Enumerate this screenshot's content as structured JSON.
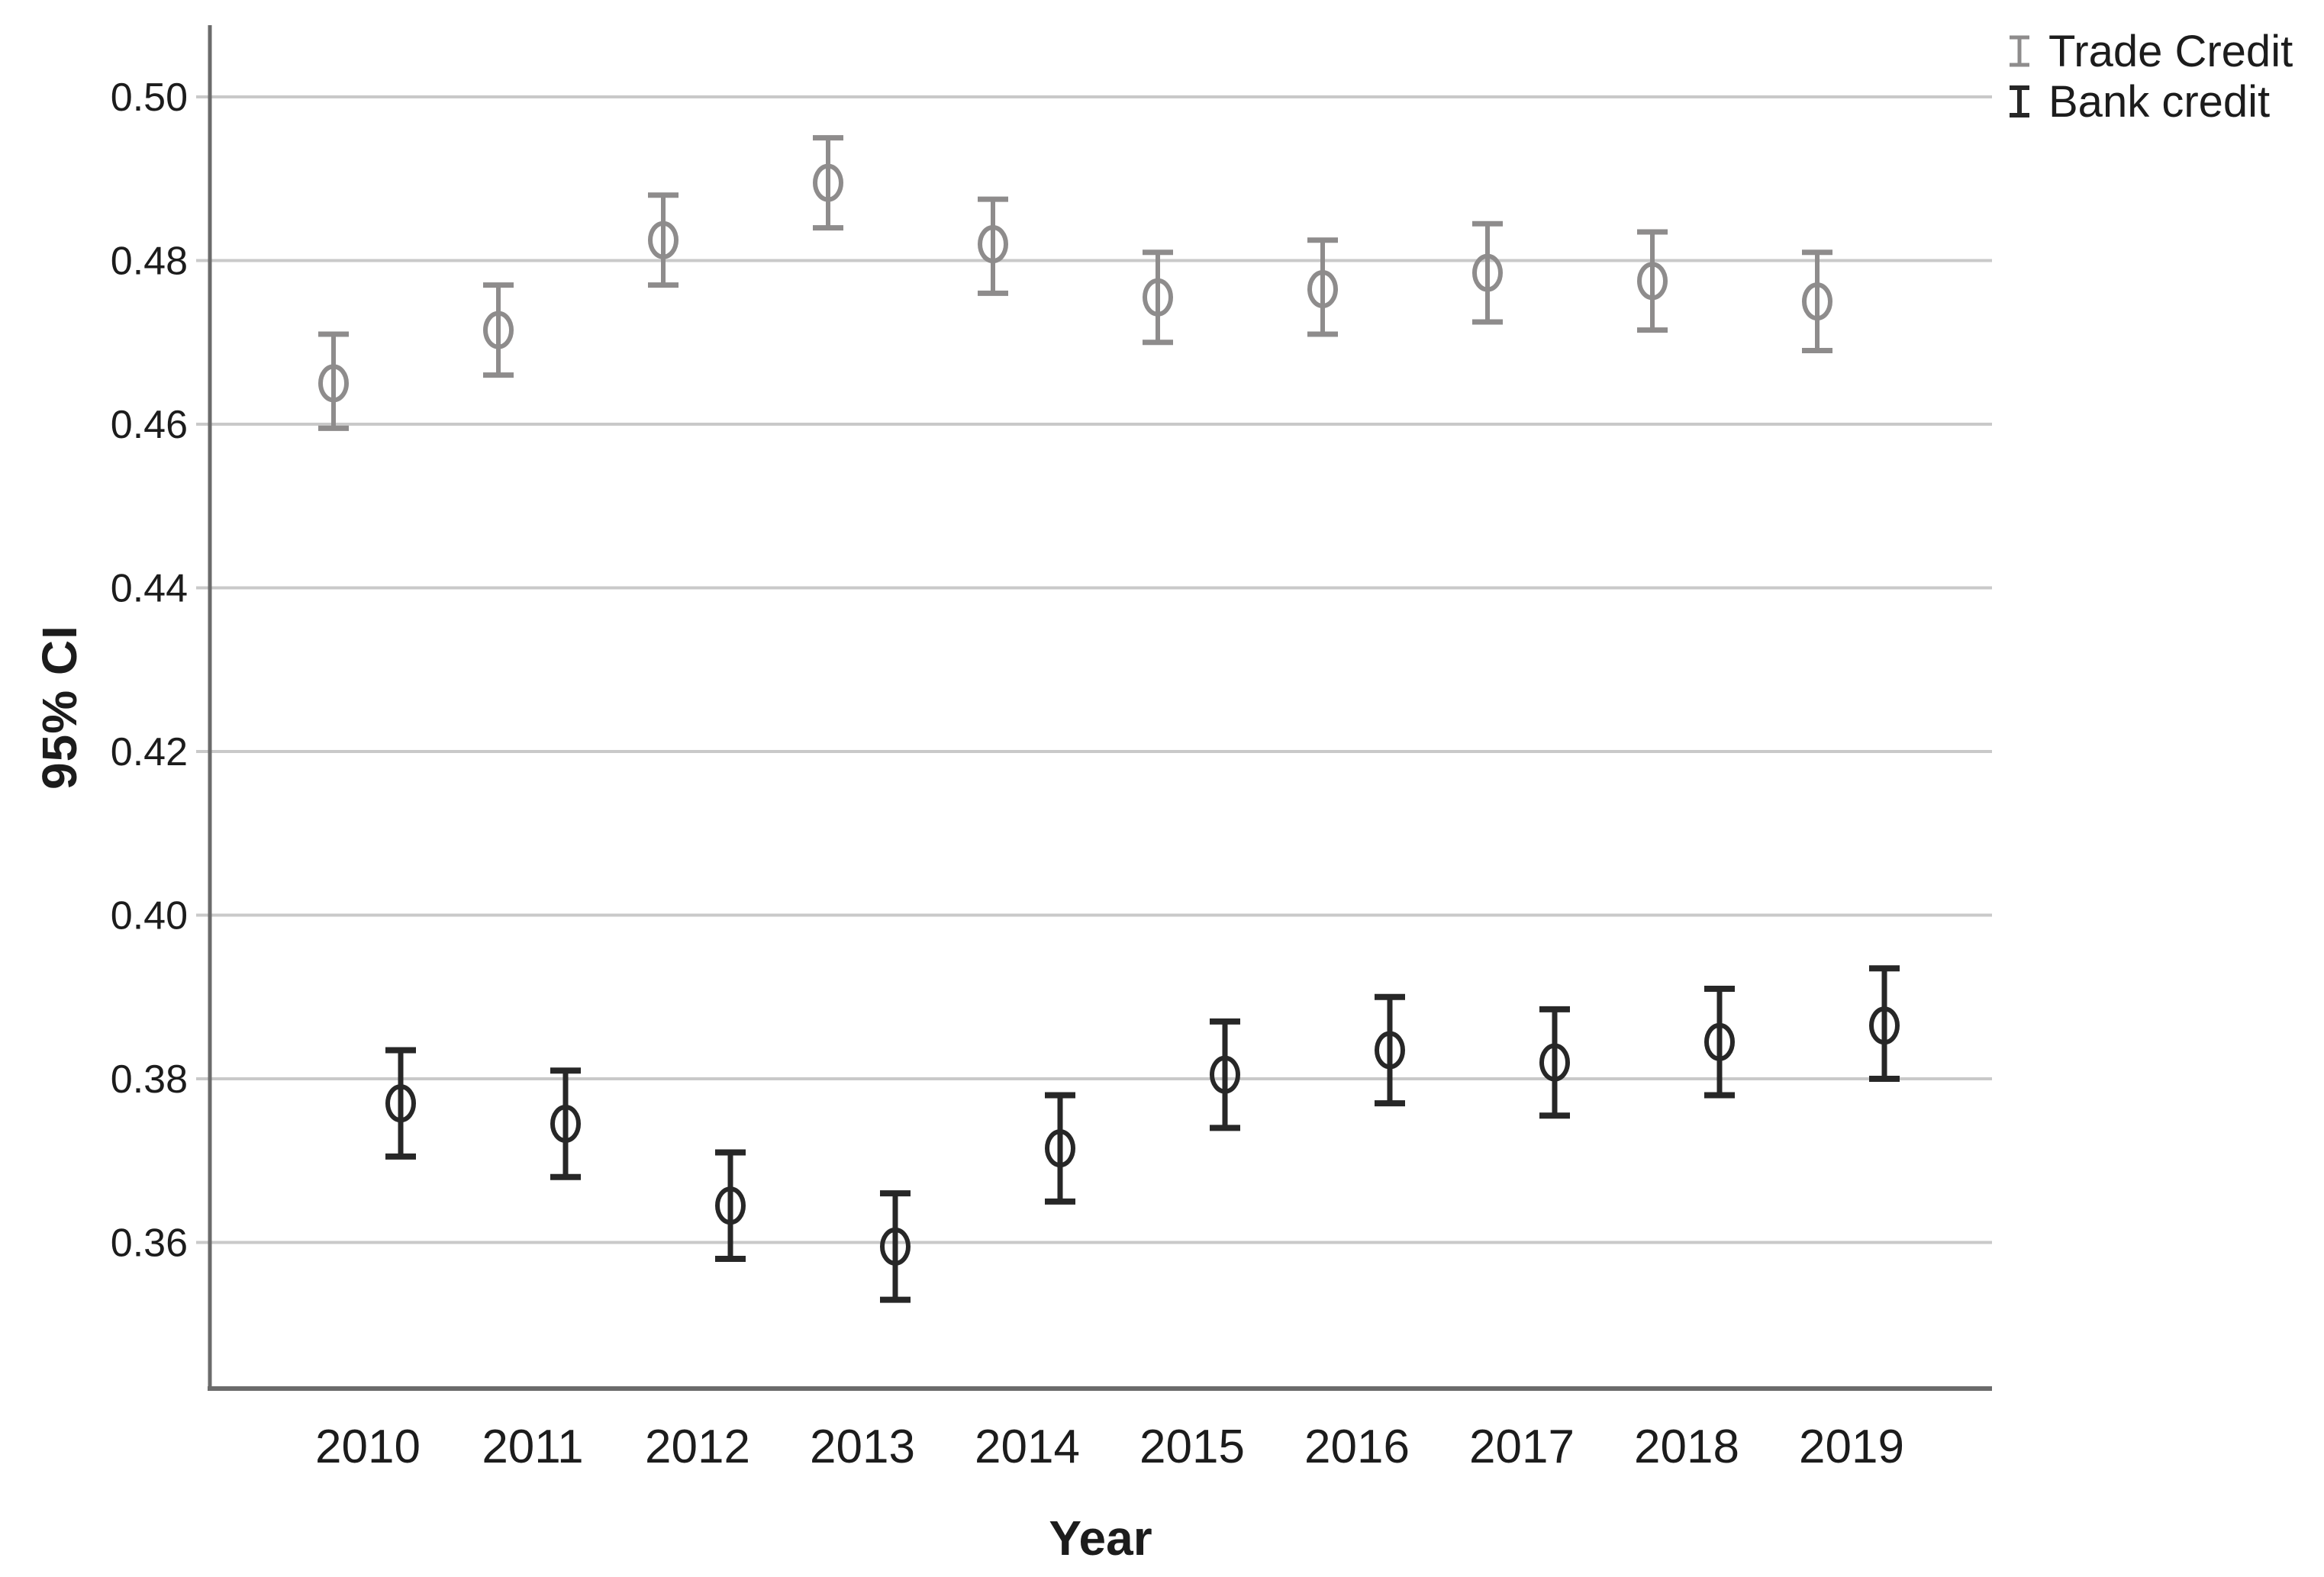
{
  "chart_data": {
    "type": "errorbar",
    "title": "",
    "xlabel": "Year",
    "ylabel": "95% CI",
    "categories": [
      "2010",
      "2011",
      "2012",
      "2013",
      "2014",
      "2015",
      "2016",
      "2017",
      "2018",
      "2019"
    ],
    "y_ticks": [
      "0.50",
      "0.48",
      "0.46",
      "0.44",
      "0.42",
      "0.40",
      "0.38",
      "0.36"
    ],
    "ylim": [
      0.342,
      0.509
    ],
    "grid": "horizontal-only",
    "legend_position": "top-right",
    "colors": {
      "gridline": "#c9c9c9",
      "axis": "#6b6b6b",
      "text": "#1c1c1c",
      "background": "#ffffff"
    },
    "series": [
      {
        "name": "Trade Credit",
        "color": "#8e8c8c",
        "marker": "open-ellipse",
        "values": [
          0.465,
          0.4715,
          0.4825,
          0.4895,
          0.482,
          0.4755,
          0.4765,
          0.4785,
          0.4775,
          0.475
        ],
        "ci_low": [
          0.4595,
          0.466,
          0.477,
          0.484,
          0.476,
          0.47,
          0.471,
          0.4725,
          0.4715,
          0.469
        ],
        "ci_high": [
          0.471,
          0.477,
          0.488,
          0.495,
          0.4875,
          0.481,
          0.4825,
          0.4845,
          0.4835,
          0.481
        ]
      },
      {
        "name": "Bank credit",
        "color": "#272727",
        "marker": "open-ellipse",
        "values": [
          0.377,
          0.3745,
          0.3645,
          0.3595,
          0.3715,
          0.3805,
          0.3835,
          0.382,
          0.3845,
          0.3865
        ],
        "ci_low": [
          0.3705,
          0.368,
          0.358,
          0.353,
          0.365,
          0.374,
          0.377,
          0.3755,
          0.378,
          0.38
        ],
        "ci_high": [
          0.3835,
          0.381,
          0.371,
          0.366,
          0.378,
          0.387,
          0.39,
          0.3885,
          0.391,
          0.3935
        ]
      }
    ]
  }
}
